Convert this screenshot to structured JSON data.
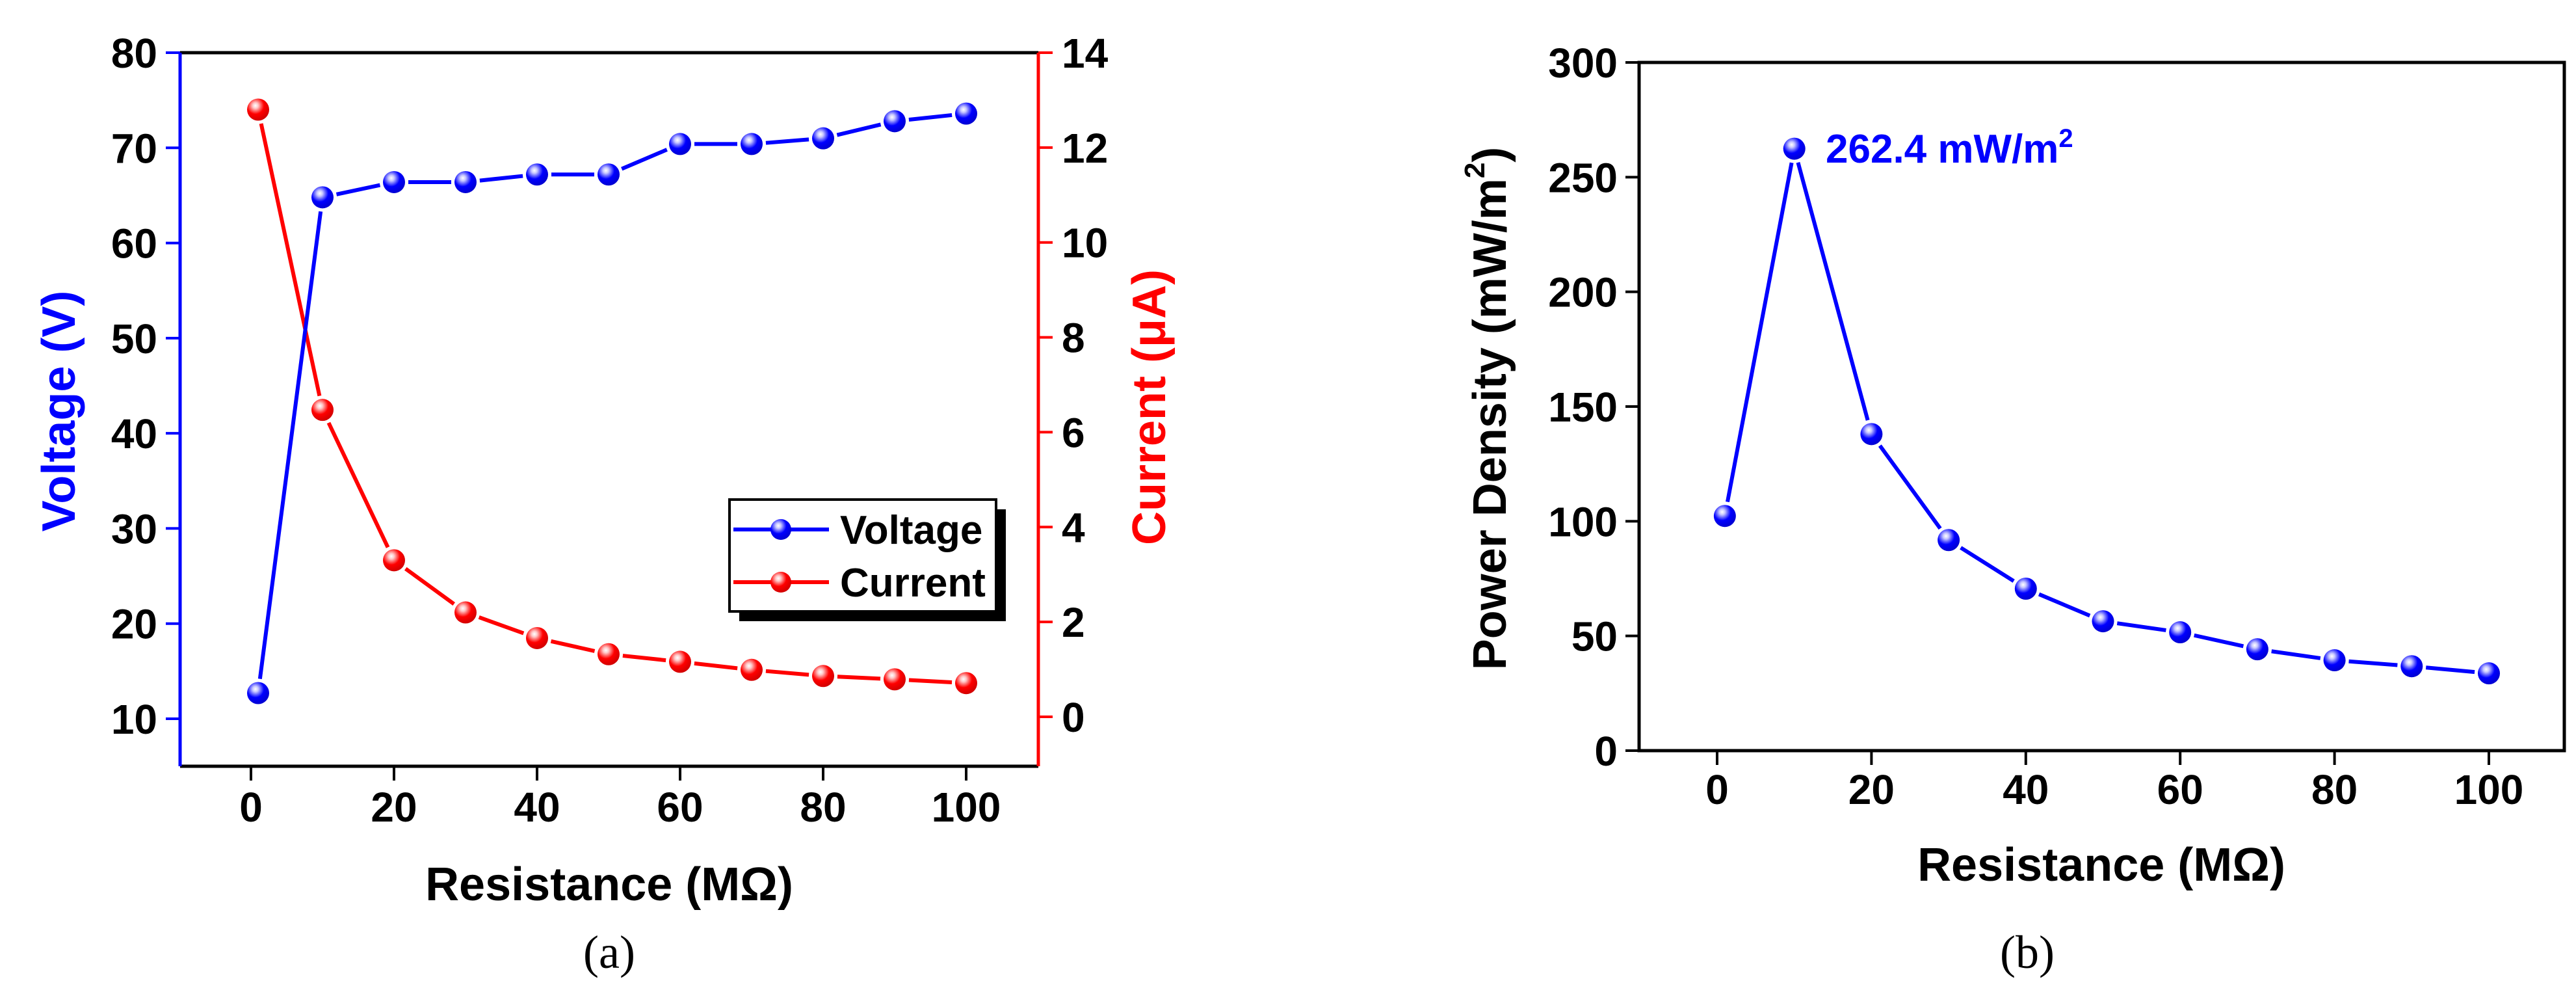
{
  "chart_data": [
    {
      "id": "a",
      "type": "line",
      "caption": "(a)",
      "xlabel": "Resistance (MΩ)",
      "xlim": [
        -10,
        110
      ],
      "xticks": [
        0,
        20,
        40,
        60,
        80,
        100
      ],
      "x": [
        1,
        10,
        20,
        30,
        40,
        50,
        60,
        70,
        80,
        90,
        100
      ],
      "grid": false,
      "legend_position": "inside-lower-right",
      "y_axes": [
        {
          "side": "left",
          "label": "Voltage (V)",
          "color": "#0000ff",
          "ylim": [
            5,
            80
          ],
          "ticks": [
            10,
            20,
            30,
            40,
            50,
            60,
            70,
            80
          ]
        },
        {
          "side": "right",
          "label": "Current (μA)",
          "color": "#ff0000",
          "ylim": [
            -1,
            14
          ],
          "ticks": [
            0,
            2,
            4,
            6,
            8,
            10,
            12,
            14
          ]
        }
      ],
      "series": [
        {
          "name": "Voltage",
          "axis": "left",
          "color": "#0000ff",
          "values": [
            12.7,
            64.8,
            66.4,
            66.4,
            67.2,
            67.2,
            70.4,
            70.4,
            71.0,
            72.8,
            73.6
          ]
        },
        {
          "name": "Current",
          "axis": "right",
          "color": "#ff0000",
          "values": [
            12.8,
            6.47,
            3.3,
            2.2,
            1.66,
            1.32,
            1.16,
            0.99,
            0.86,
            0.79,
            0.71
          ]
        }
      ]
    },
    {
      "id": "b",
      "type": "line",
      "caption": "(b)",
      "xlabel": "Resistance (MΩ)",
      "ylabel": "Power Density (mW/m²)",
      "ylabel_main": "Power Density (mW/m",
      "ylabel_sup": "2",
      "ylabel_end": ")",
      "xlim": [
        -10,
        110
      ],
      "ylim": [
        0,
        300
      ],
      "xticks": [
        0,
        20,
        40,
        60,
        80,
        100
      ],
      "yticks": [
        0,
        50,
        100,
        150,
        200,
        250,
        300
      ],
      "grid": false,
      "x": [
        1,
        10,
        20,
        30,
        40,
        50,
        60,
        70,
        80,
        90,
        100
      ],
      "series": [
        {
          "name": "Power Density",
          "color": "#0000ff",
          "values": [
            102.3,
            262.4,
            138.0,
            91.8,
            70.6,
            56.4,
            51.6,
            44.2,
            39.4,
            36.8,
            33.7
          ]
        }
      ],
      "annotations": [
        {
          "x": 10,
          "y": 262.4,
          "text_main": "262.4 mW/m",
          "text_sup": "2",
          "color": "#0000ff"
        }
      ]
    }
  ]
}
